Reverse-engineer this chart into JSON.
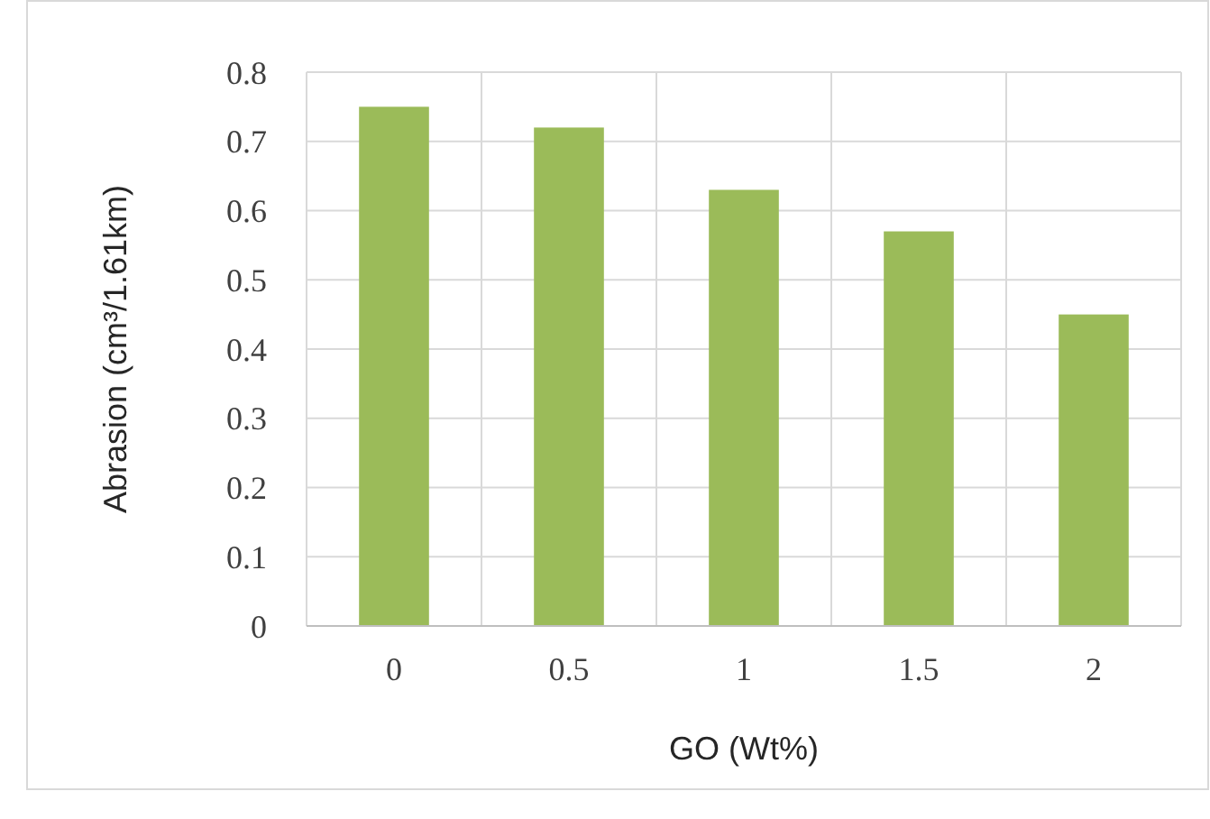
{
  "chart_data": {
    "type": "bar",
    "xlabel": "GO (Wt%)",
    "ylabel": "Abrasion (cm³/1.61km)",
    "categories": [
      "0",
      "0.5",
      "1",
      "1.5",
      "2"
    ],
    "values": [
      0.75,
      0.72,
      0.63,
      0.57,
      0.45
    ],
    "color": "#9bbb59",
    "ylim": [
      0,
      0.8
    ],
    "yticks": [
      0,
      0.1,
      0.2,
      0.3,
      0.4,
      0.5,
      0.6,
      0.7,
      0.8
    ],
    "grid": true
  }
}
